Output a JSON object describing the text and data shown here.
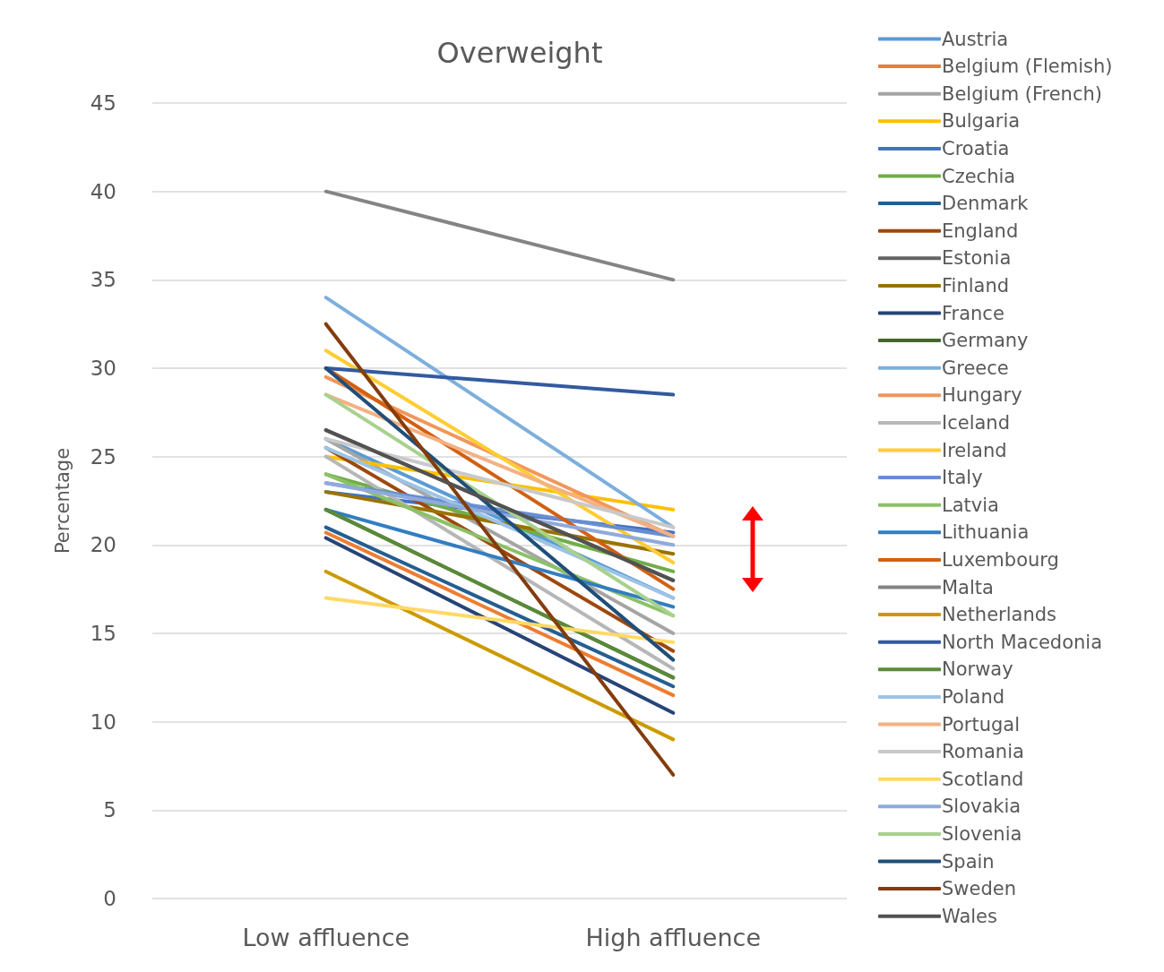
{
  "chart_data": {
    "type": "line",
    "title": "Overweight",
    "ylabel": "Percentage",
    "categories": [
      "Low affluence",
      "High affluence"
    ],
    "ylim": [
      0,
      45
    ],
    "yticks": [
      0,
      5,
      10,
      15,
      20,
      25,
      30,
      35,
      40,
      45
    ],
    "grid": "y",
    "legend": "right",
    "marker": "none",
    "line_style": "solid",
    "series": [
      {
        "name": "Austria",
        "color": "#5b9bd5",
        "values": [
          26,
          17
        ]
      },
      {
        "name": "Belgium (Flemish)",
        "color": "#ed7d31",
        "values": [
          20.7,
          11.5
        ]
      },
      {
        "name": "Belgium (French)",
        "color": "#a5a5a5",
        "values": [
          26,
          15
        ]
      },
      {
        "name": "Bulgaria",
        "color": "#ffc000",
        "values": [
          25,
          22
        ]
      },
      {
        "name": "Croatia",
        "color": "#4472c4",
        "values": [
          23,
          20.7
        ]
      },
      {
        "name": "Czechia",
        "color": "#70ad47",
        "values": [
          24,
          18.5
        ]
      },
      {
        "name": "Denmark",
        "color": "#255e91",
        "values": [
          21,
          12
        ]
      },
      {
        "name": "England",
        "color": "#9e480e",
        "values": [
          25.5,
          14
        ]
      },
      {
        "name": "Estonia",
        "color": "#636363",
        "values": [
          26.5,
          18
        ]
      },
      {
        "name": "Finland",
        "color": "#997300",
        "values": [
          23,
          19.5
        ]
      },
      {
        "name": "France",
        "color": "#264478",
        "values": [
          20.4,
          10.5
        ]
      },
      {
        "name": "Germany",
        "color": "#43682b",
        "values": [
          22,
          12.5
        ]
      },
      {
        "name": "Greece",
        "color": "#7cafdd",
        "values": [
          34,
          21
        ]
      },
      {
        "name": "Hungary",
        "color": "#f1975a",
        "values": [
          29.5,
          20.5
        ]
      },
      {
        "name": "Iceland",
        "color": "#b7b7b7",
        "values": [
          25,
          13
        ]
      },
      {
        "name": "Ireland",
        "color": "#ffcd33",
        "values": [
          31,
          19
        ]
      },
      {
        "name": "Italy",
        "color": "#698ed0",
        "values": [
          23.5,
          20.5
        ]
      },
      {
        "name": "Latvia",
        "color": "#8cc168",
        "values": [
          24,
          16
        ]
      },
      {
        "name": "Lithuania",
        "color": "#327dc2",
        "values": [
          22,
          16.5
        ]
      },
      {
        "name": "Luxembourg",
        "color": "#d26012",
        "values": [
          30,
          17.5
        ]
      },
      {
        "name": "Malta",
        "color": "#848484",
        "values": [
          40,
          35
        ]
      },
      {
        "name": "Netherlands",
        "color": "#cc9a00",
        "values": [
          18.5,
          9
        ]
      },
      {
        "name": "North Macedonia",
        "color": "#335aa1",
        "values": [
          30,
          28.5
        ]
      },
      {
        "name": "Norway",
        "color": "#5a8a39",
        "values": [
          22,
          12.5
        ]
      },
      {
        "name": "Poland",
        "color": "#9dc3e6",
        "values": [
          25.5,
          17
        ]
      },
      {
        "name": "Portugal",
        "color": "#f4b183",
        "values": [
          28.5,
          20.5
        ]
      },
      {
        "name": "Romania",
        "color": "#c9c9c9",
        "values": [
          26,
          21
        ]
      },
      {
        "name": "Scotland",
        "color": "#ffd966",
        "values": [
          17,
          14.5
        ]
      },
      {
        "name": "Slovakia",
        "color": "#8faadc",
        "values": [
          23.5,
          20
        ]
      },
      {
        "name": "Slovenia",
        "color": "#a9d18e",
        "values": [
          28.5,
          16
        ]
      },
      {
        "name": "Spain",
        "color": "#1f4e79",
        "values": [
          30,
          13.5
        ]
      },
      {
        "name": "Sweden",
        "color": "#843c0c",
        "values": [
          32.5,
          7
        ]
      },
      {
        "name": "Wales",
        "color": "#525252",
        "values": [
          26.5,
          18
        ]
      }
    ]
  }
}
